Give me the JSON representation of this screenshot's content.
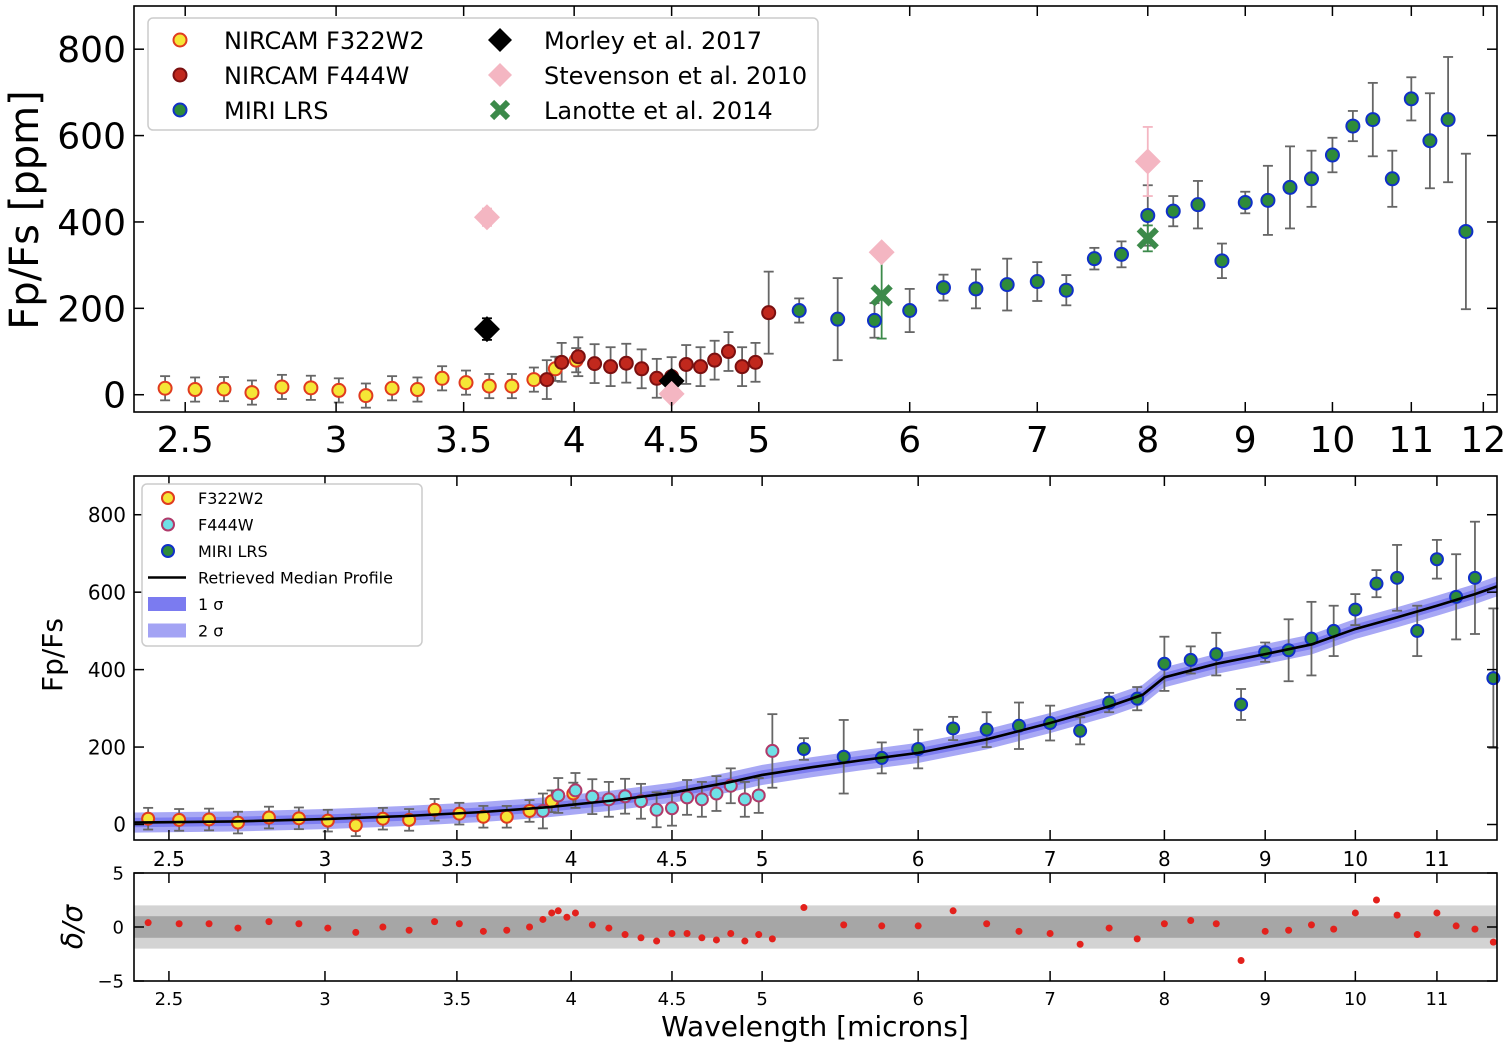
{
  "chart_data": [
    {
      "type": "scatter",
      "xlabel": "",
      "ylabel": "Fp/Fs [ppm]",
      "xscale": "log",
      "xlim": [
        2.35,
        12.2
      ],
      "ylim": [
        -40,
        900
      ],
      "xticks": [
        2.5,
        3,
        3.5,
        4,
        4.5,
        5,
        6,
        7,
        8,
        9,
        10,
        11,
        12
      ],
      "yticks": [
        0,
        200,
        400,
        600,
        800
      ],
      "legend_position": "top-left",
      "legend": [
        "NIRCAM F322W2",
        "NIRCAM F444W",
        "MIRI LRS",
        "Morley et al. 2017",
        "Stevenson et al. 2010",
        "Lanotte et al. 2014"
      ],
      "series": [
        {
          "name": "NIRCAM F322W2",
          "color": "#f5e636",
          "edge": "#e03b1f",
          "x": [
            2.44,
            2.53,
            2.62,
            2.71,
            2.81,
            2.91,
            3.01,
            3.11,
            3.21,
            3.31,
            3.41,
            3.51,
            3.61,
            3.71,
            3.81,
            3.91,
            4.01
          ],
          "y": [
            15,
            12,
            13,
            5,
            18,
            16,
            10,
            -2,
            15,
            12,
            38,
            28,
            20,
            20,
            35,
            60,
            80
          ],
          "err": [
            28,
            28,
            28,
            28,
            28,
            28,
            28,
            28,
            28,
            28,
            28,
            28,
            28,
            28,
            28,
            28,
            28
          ]
        },
        {
          "name": "NIRCAM F444W",
          "color": "#c1281d",
          "edge": "#7a1010",
          "x": [
            3.87,
            3.94,
            4.02,
            4.1,
            4.18,
            4.26,
            4.34,
            4.42,
            4.5,
            4.58,
            4.66,
            4.74,
            4.82,
            4.9,
            4.98,
            5.06
          ],
          "y": [
            35,
            75,
            88,
            72,
            65,
            73,
            60,
            38,
            42,
            70,
            65,
            80,
            100,
            65,
            75,
            190
          ],
          "err": [
            45,
            45,
            45,
            45,
            45,
            45,
            45,
            45,
            45,
            45,
            45,
            45,
            45,
            45,
            45,
            95
          ]
        },
        {
          "name": "MIRI LRS",
          "color": "#2e8b3a",
          "edge": "#1030c8",
          "x": [
            5.25,
            5.5,
            5.75,
            6.0,
            6.25,
            6.5,
            6.75,
            7.0,
            7.25,
            7.5,
            7.75,
            8.0,
            8.25,
            8.5,
            8.75,
            9.0,
            9.25,
            9.5,
            9.75,
            10.0,
            10.25,
            10.5,
            10.75,
            11.0,
            11.25,
            11.5,
            11.75
          ],
          "y": [
            195,
            175,
            172,
            195,
            248,
            245,
            255,
            262,
            242,
            315,
            325,
            415,
            425,
            440,
            310,
            445,
            450,
            480,
            500,
            555,
            622,
            637,
            500,
            685,
            588,
            637,
            378
          ],
          "err": [
            28,
            95,
            40,
            50,
            30,
            45,
            60,
            45,
            35,
            25,
            30,
            70,
            35,
            55,
            40,
            25,
            80,
            95,
            65,
            40,
            35,
            85,
            65,
            50,
            110,
            145,
            180
          ]
        },
        {
          "name": "Morley et al. 2017",
          "color": "#000000",
          "marker": "diamond",
          "x": [
            3.6,
            4.5
          ],
          "y": [
            152,
            32
          ],
          "err": [
            25,
            20
          ]
        },
        {
          "name": "Stevenson et al. 2010",
          "color": "#f4b6c2",
          "marker": "diamond",
          "x": [
            3.6,
            4.5,
            5.8,
            8.0
          ],
          "y": [
            411,
            2,
            330,
            540
          ],
          "err": [
            20,
            10,
            15,
            80
          ]
        },
        {
          "name": "Lanotte et al. 2014",
          "color": "#3c8a4a",
          "marker": "x",
          "x": [
            5.8,
            8.0
          ],
          "y": [
            230,
            362
          ],
          "err": [
            100,
            30
          ]
        }
      ]
    },
    {
      "type": "scatter",
      "xlabel": "",
      "ylabel": "Fp/Fs",
      "xscale": "log",
      "xlim": [
        2.4,
        11.8
      ],
      "ylim": [
        -40,
        900
      ],
      "xticks": [
        2.5,
        3,
        3.5,
        4,
        4.5,
        5,
        6,
        7,
        8,
        9,
        10,
        11
      ],
      "yticks": [
        0,
        200,
        400,
        600,
        800
      ],
      "legend_position": "top-left",
      "legend": [
        "F322W2",
        "F444W",
        "MIRI LRS",
        "Retrieved Median Profile",
        "1 σ",
        "2 σ"
      ],
      "series": [
        {
          "name": "F322W2",
          "color": "#f5e636",
          "edge": "#e03b1f",
          "x": [
            2.44,
            2.53,
            2.62,
            2.71,
            2.81,
            2.91,
            3.01,
            3.11,
            3.21,
            3.31,
            3.41,
            3.51,
            3.61,
            3.71,
            3.81,
            3.91,
            4.01
          ],
          "y": [
            15,
            12,
            13,
            5,
            18,
            16,
            10,
            -2,
            15,
            12,
            38,
            28,
            20,
            20,
            35,
            60,
            80
          ],
          "err": [
            28,
            28,
            28,
            28,
            28,
            28,
            28,
            28,
            28,
            28,
            28,
            28,
            28,
            28,
            28,
            28,
            28
          ]
        },
        {
          "name": "F444W",
          "color": "#6fe0e6",
          "edge": "#b03a6a",
          "x": [
            3.87,
            3.94,
            4.02,
            4.1,
            4.18,
            4.26,
            4.34,
            4.42,
            4.5,
            4.58,
            4.66,
            4.74,
            4.82,
            4.9,
            4.98,
            5.06
          ],
          "y": [
            35,
            75,
            88,
            72,
            65,
            73,
            60,
            38,
            42,
            70,
            65,
            80,
            100,
            65,
            75,
            190
          ],
          "err": [
            45,
            45,
            45,
            45,
            45,
            45,
            45,
            45,
            45,
            45,
            45,
            45,
            45,
            45,
            45,
            95
          ]
        },
        {
          "name": "MIRI LRS",
          "color": "#2e8b3a",
          "edge": "#1030c8",
          "x": [
            5.25,
            5.5,
            5.75,
            6.0,
            6.25,
            6.5,
            6.75,
            7.0,
            7.25,
            7.5,
            7.75,
            8.0,
            8.25,
            8.5,
            8.75,
            9.0,
            9.25,
            9.5,
            9.75,
            10.0,
            10.25,
            10.5,
            10.75,
            11.0,
            11.25,
            11.5,
            11.75
          ],
          "y": [
            195,
            175,
            172,
            195,
            248,
            245,
            255,
            262,
            242,
            315,
            325,
            415,
            425,
            440,
            310,
            445,
            450,
            480,
            500,
            555,
            622,
            637,
            500,
            685,
            588,
            637,
            378
          ],
          "err": [
            28,
            95,
            40,
            50,
            30,
            45,
            60,
            45,
            35,
            25,
            30,
            70,
            35,
            55,
            40,
            25,
            80,
            95,
            65,
            40,
            35,
            85,
            65,
            50,
            110,
            145,
            180
          ]
        },
        {
          "name": "Retrieved Median Profile",
          "color": "#000000",
          "kind": "line",
          "x": [
            2.4,
            2.7,
            3.0,
            3.3,
            3.6,
            3.9,
            4.2,
            4.5,
            4.8,
            5.0,
            5.3,
            5.6,
            6.0,
            6.5,
            7.0,
            7.5,
            7.8,
            8.0,
            8.5,
            9.0,
            9.5,
            10.0,
            10.5,
            11.0,
            11.5,
            11.8
          ],
          "y": [
            5,
            8,
            14,
            22,
            32,
            45,
            62,
            82,
            108,
            128,
            148,
            165,
            185,
            220,
            262,
            305,
            335,
            380,
            415,
            440,
            465,
            505,
            535,
            565,
            595,
            615
          ]
        },
        {
          "name": "1 σ",
          "color": "#7b7bf0",
          "kind": "band",
          "halfwidth": 12
        },
        {
          "name": "2 σ",
          "color": "#a3a3f4",
          "kind": "band",
          "halfwidth": 26
        }
      ]
    },
    {
      "type": "scatter",
      "xlabel": "Wavelength [microns]",
      "ylabel": "δ/σ",
      "xscale": "log",
      "xlim": [
        2.4,
        11.8
      ],
      "ylim": [
        -5,
        5
      ],
      "xticks": [
        2.5,
        3,
        3.5,
        4,
        4.5,
        5,
        6,
        7,
        8,
        9,
        10,
        11
      ],
      "yticks": [
        -5,
        0,
        5
      ],
      "bands": [
        {
          "lo": -2,
          "hi": 2,
          "color": "#d3d3d3"
        },
        {
          "lo": -1,
          "hi": 1,
          "color": "#a6a6a6"
        }
      ],
      "series": [
        {
          "name": "residuals",
          "color": "#e3211c",
          "x": [
            2.44,
            2.53,
            2.62,
            2.71,
            2.81,
            2.91,
            3.01,
            3.11,
            3.21,
            3.31,
            3.41,
            3.51,
            3.61,
            3.71,
            3.81,
            3.87,
            3.91,
            3.94,
            3.98,
            4.02,
            4.1,
            4.18,
            4.26,
            4.34,
            4.42,
            4.5,
            4.58,
            4.66,
            4.74,
            4.82,
            4.9,
            4.98,
            5.06,
            5.25,
            5.5,
            5.75,
            6.0,
            6.25,
            6.5,
            6.75,
            7.0,
            7.25,
            7.5,
            7.75,
            8.0,
            8.25,
            8.5,
            8.75,
            9.0,
            9.25,
            9.5,
            9.75,
            10.0,
            10.25,
            10.5,
            10.75,
            11.0,
            11.25,
            11.5,
            11.75
          ],
          "y": [
            0.4,
            0.3,
            0.3,
            -0.1,
            0.5,
            0.3,
            -0.1,
            -0.5,
            0.0,
            -0.3,
            0.5,
            0.3,
            -0.4,
            -0.3,
            0.0,
            0.7,
            1.3,
            1.5,
            0.9,
            1.3,
            0.2,
            -0.1,
            -0.7,
            -1.0,
            -1.3,
            -0.6,
            -0.6,
            -1.0,
            -1.2,
            -0.6,
            -1.3,
            -0.7,
            -1.1,
            1.8,
            0.2,
            0.1,
            0.1,
            1.5,
            0.3,
            -0.4,
            -0.6,
            -1.6,
            -0.1,
            -1.1,
            0.3,
            0.6,
            0.3,
            -3.1,
            -0.4,
            -0.3,
            0.2,
            -0.2,
            1.3,
            2.5,
            1.1,
            -0.7,
            1.3,
            0.1,
            -0.2,
            -1.4
          ]
        }
      ]
    }
  ]
}
